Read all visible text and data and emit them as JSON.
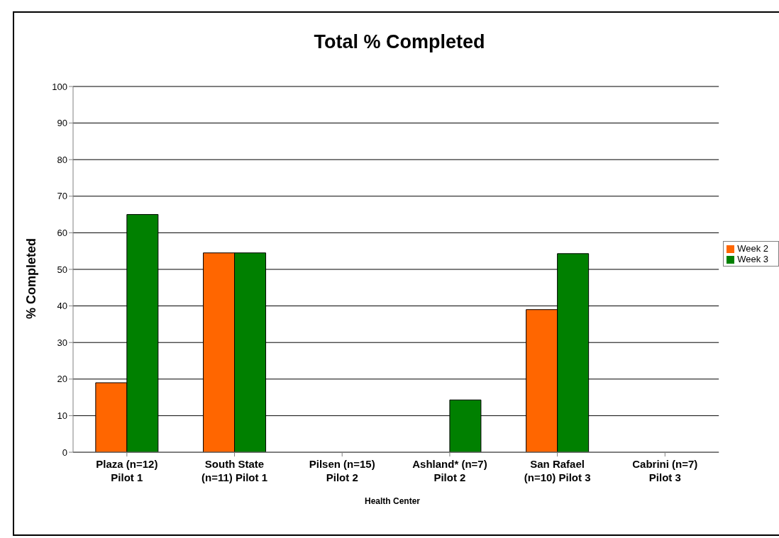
{
  "chart_data": {
    "type": "bar",
    "title": "Total % Completed",
    "xlabel": "Health Center",
    "ylabel": "% Completed",
    "categories": [
      "Plaza (n=12)\nPilot 1",
      "South State\n(n=11) Pilot 1",
      "Pilsen (n=15)\nPilot 2",
      "Ashland* (n=7)\nPilot 2",
      "San Rafael\n(n=10) Pilot 3",
      "Cabrini (n=7)\nPilot 3"
    ],
    "series": [
      {
        "name": "Week 2",
        "color": "#ff6600",
        "values": [
          19,
          54.5,
          0,
          0,
          39,
          0
        ]
      },
      {
        "name": "Week 3",
        "color": "#008000",
        "values": [
          65,
          54.5,
          0,
          14.3,
          54.3,
          0
        ]
      }
    ],
    "ylim": [
      0,
      100
    ],
    "yticks": [
      0,
      10,
      20,
      30,
      40,
      50,
      60,
      70,
      80,
      90,
      100
    ],
    "grid": "y",
    "legend": "right"
  }
}
